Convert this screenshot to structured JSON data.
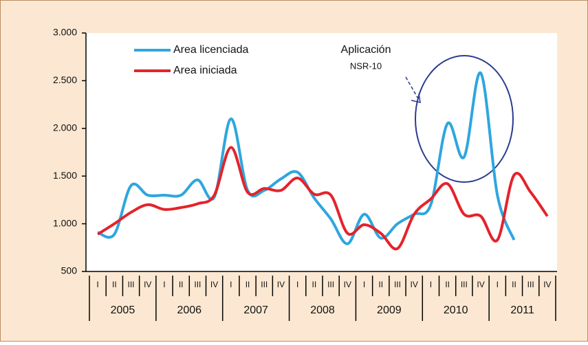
{
  "chart_data": {
    "type": "line",
    "categories": [
      "I",
      "II",
      "III",
      "IV",
      "I",
      "II",
      "III",
      "IV",
      "I",
      "II",
      "III",
      "IV",
      "I",
      "II",
      "III",
      "IV",
      "I",
      "II",
      "III",
      "IV",
      "I",
      "II",
      "III",
      "IV",
      "I",
      "II",
      "III",
      "IV"
    ],
    "years": [
      "2005",
      "2006",
      "2007",
      "2008",
      "2009",
      "2010",
      "2011"
    ],
    "series": [
      {
        "name": "Area licenciada",
        "color": "#2ea6de",
        "values": [
          910,
          890,
          1400,
          1300,
          1300,
          1300,
          1460,
          1280,
          2100,
          1350,
          1350,
          1470,
          1540,
          1270,
          1050,
          790,
          1100,
          850,
          1000,
          1100,
          1200,
          2050,
          1700,
          2580,
          1300,
          830,
          null,
          null
        ]
      },
      {
        "name": "Area iniciada",
        "color": "#e4232b",
        "values": [
          890,
          1000,
          1120,
          1200,
          1150,
          1170,
          1210,
          1300,
          1800,
          1330,
          1370,
          1350,
          1480,
          1310,
          1300,
          900,
          990,
          900,
          740,
          1100,
          1260,
          1420,
          1100,
          1080,
          830,
          1510,
          1330,
          1080
        ]
      }
    ],
    "ylim": [
      500,
      3000
    ],
    "yticks": [
      500,
      {
        "value": 1000,
        "label": "1.000"
      },
      {
        "value": 1500,
        "label": "1.500"
      },
      {
        "value": 2000,
        "label": "2.000"
      },
      {
        "value": 2500,
        "label": "2.500"
      },
      {
        "value": 3000,
        "label": "3.000"
      }
    ],
    "grid": false,
    "annotations": [
      "Aplicación",
      "NSR-10"
    ]
  }
}
